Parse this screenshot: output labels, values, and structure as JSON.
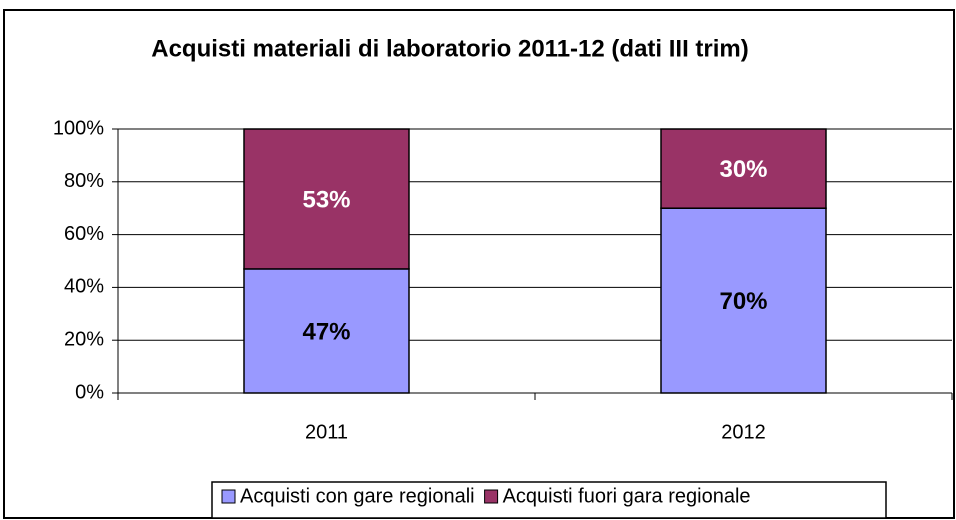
{
  "chart_data": {
    "type": "stacked_bar",
    "title": "Acquisti materiali di laboratorio 2011-12 (dati III trim)",
    "categories": [
      "2011",
      "2012"
    ],
    "series": [
      {
        "name": "Acquisti con gare regionali",
        "color": "#9999ff",
        "label_color": "#000000",
        "values": [
          47,
          70
        ],
        "value_labels": [
          "47%",
          "70%"
        ]
      },
      {
        "name": "Acquisti fuori gara regionale",
        "color": "#993366",
        "label_color": "#ffffff",
        "values": [
          53,
          30
        ],
        "value_labels": [
          "53%",
          "30%"
        ]
      }
    ],
    "ylim": [
      0,
      100
    ],
    "yticks": [
      {
        "value": 0,
        "label": "0%"
      },
      {
        "value": 20,
        "label": "20%"
      },
      {
        "value": 40,
        "label": "40%"
      },
      {
        "value": 60,
        "label": "60%"
      },
      {
        "value": 80,
        "label": "80%"
      },
      {
        "value": 100,
        "label": "100%"
      }
    ],
    "grid": true,
    "legend": "bottom"
  }
}
